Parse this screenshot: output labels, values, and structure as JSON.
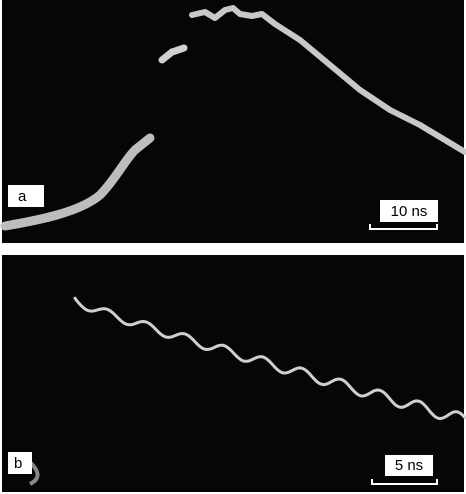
{
  "panels": [
    {
      "label": "a",
      "scale": "10 ns"
    },
    {
      "label": "b",
      "scale": "5 ns"
    }
  ]
}
